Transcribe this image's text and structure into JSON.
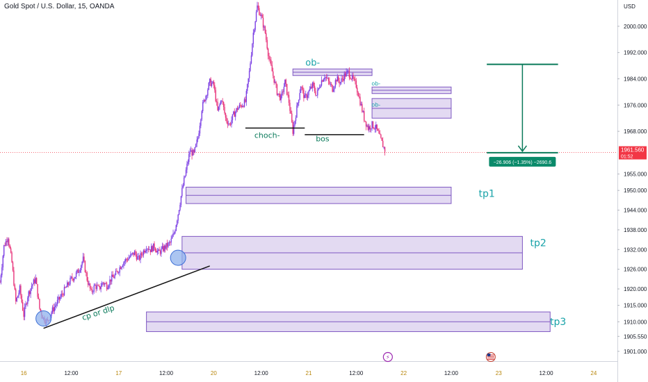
{
  "symbol_title": "Gold Spot / U.S. Dollar, 15, OANDA",
  "colors": {
    "up": "#7b3fe4",
    "down": "#e8337a",
    "zone_fill": "#d9cdee",
    "zone_line": "#7e57c2",
    "teal": "#17a2a8",
    "green": "#0a7a5a",
    "price_line": "#f23645",
    "circle": "#8fb1ec"
  },
  "chart_data": {
    "type": "candlestick",
    "y_axis": {
      "label": "USD",
      "ylim": [
        1898,
        2008
      ],
      "ticks": [
        "2000.000",
        "1992.000",
        "1984.000",
        "1976.000",
        "1968.000",
        "1955.000",
        "1950.000",
        "1944.000",
        "1938.000",
        "1932.000",
        "1926.000",
        "1920.000",
        "1915.000",
        "1910.000",
        "1905.550",
        "1901.000"
      ],
      "tick_values": [
        2000.0,
        1992.0,
        1984.0,
        1976.0,
        1968.0,
        1955.0,
        1950.0,
        1944.0,
        1938.0,
        1932.0,
        1926.0,
        1920.0,
        1915.0,
        1910.0,
        1905.55,
        1901.0
      ]
    },
    "x_axis": {
      "labels": [
        "16",
        "12:00",
        "17",
        "12:00",
        "20",
        "12:00",
        "21",
        "12:00",
        "22",
        "12:00",
        "23",
        "12:00",
        "24"
      ],
      "day_labels": [
        "16",
        "17",
        "20",
        "21",
        "22",
        "23",
        "24"
      ],
      "positions": [
        0,
        12,
        24,
        36,
        48,
        60,
        72,
        84,
        96,
        108,
        120,
        132,
        144
      ]
    },
    "x_range": [
      -6,
      150
    ],
    "price_path": [
      [
        -6,
        1922
      ],
      [
        -5,
        1933
      ],
      [
        -4,
        1936
      ],
      [
        -3,
        1928
      ],
      [
        -2,
        1916
      ],
      [
        -1,
        1920
      ],
      [
        0,
        1912
      ],
      [
        1,
        1918
      ],
      [
        2,
        1921
      ],
      [
        3,
        1923
      ],
      [
        4,
        1914
      ],
      [
        5,
        1911
      ],
      [
        6,
        1910
      ],
      [
        7,
        1913
      ],
      [
        8,
        1915
      ],
      [
        9,
        1917
      ],
      [
        10,
        1919
      ],
      [
        11,
        1921
      ],
      [
        12,
        1923
      ],
      [
        13,
        1924
      ],
      [
        14,
        1926
      ],
      [
        15,
        1929
      ],
      [
        16,
        1923
      ],
      [
        17,
        1919
      ],
      [
        18,
        1921
      ],
      [
        19,
        1920
      ],
      [
        20,
        1922
      ],
      [
        21,
        1921
      ],
      [
        22,
        1923
      ],
      [
        23,
        1924
      ],
      [
        24,
        1926
      ],
      [
        25,
        1928
      ],
      [
        26,
        1929
      ],
      [
        27,
        1930
      ],
      [
        28,
        1931
      ],
      [
        29,
        1929
      ],
      [
        30,
        1931
      ],
      [
        31,
        1933
      ],
      [
        32,
        1932
      ],
      [
        33,
        1933
      ],
      [
        34,
        1931
      ],
      [
        35,
        1932
      ],
      [
        36,
        1933
      ],
      [
        37,
        1934
      ],
      [
        38,
        1937
      ],
      [
        39,
        1943
      ],
      [
        40,
        1950
      ],
      [
        41,
        1956
      ],
      [
        42,
        1962
      ],
      [
        43,
        1961
      ],
      [
        44,
        1966
      ],
      [
        45,
        1975
      ],
      [
        46,
        1979
      ],
      [
        47,
        1983
      ],
      [
        48,
        1982
      ],
      [
        49,
        1974
      ],
      [
        50,
        1978
      ],
      [
        51,
        1972
      ],
      [
        52,
        1970
      ],
      [
        53,
        1973
      ],
      [
        54,
        1975
      ],
      [
        55,
        1976
      ],
      [
        56,
        1977
      ],
      [
        57,
        1986
      ],
      [
        58,
        1998
      ],
      [
        59,
        2006
      ],
      [
        60,
        2003
      ],
      [
        61,
        1998
      ],
      [
        62,
        1990
      ],
      [
        63,
        1985
      ],
      [
        64,
        1980
      ],
      [
        65,
        1978
      ],
      [
        66,
        1983
      ],
      [
        67,
        1977
      ],
      [
        68,
        1968
      ],
      [
        69,
        1975
      ],
      [
        70,
        1982
      ],
      [
        71,
        1978
      ],
      [
        72,
        1980
      ],
      [
        73,
        1982
      ],
      [
        74,
        1979
      ],
      [
        75,
        1983
      ],
      [
        76,
        1985
      ],
      [
        77,
        1983
      ],
      [
        78,
        1981
      ],
      [
        79,
        1984
      ],
      [
        80,
        1983
      ],
      [
        81,
        1985
      ],
      [
        82,
        1986
      ],
      [
        83,
        1984
      ],
      [
        84,
        1982
      ],
      [
        85,
        1977
      ],
      [
        86,
        1972
      ],
      [
        87,
        1969
      ],
      [
        88,
        1970
      ],
      [
        89,
        1969
      ],
      [
        90,
        1966
      ],
      [
        91,
        1963
      ],
      [
        91.5,
        1961.56
      ]
    ],
    "annotations": [
      {
        "text": "ob-",
        "x": 73,
        "y": 1988,
        "color": "teal",
        "size": 13
      },
      {
        "text": "ob-",
        "x": 89,
        "y": 1982,
        "color": "teal",
        "size": 8
      },
      {
        "text": "ob-",
        "x": 89,
        "y": 1975.5,
        "color": "teal",
        "size": 8
      },
      {
        "text": "choch-",
        "x": 61.5,
        "y": 1966,
        "color": "green",
        "size": 11
      },
      {
        "text": "bos",
        "x": 75.5,
        "y": 1965,
        "color": "green",
        "size": 11
      },
      {
        "text": "tp1",
        "x": 117,
        "y": 1948,
        "color": "teal",
        "size": 14
      },
      {
        "text": "tp2",
        "x": 130,
        "y": 1933,
        "color": "teal",
        "size": 14
      },
      {
        "text": "tp3",
        "x": 135,
        "y": 1909,
        "color": "teal",
        "size": 14
      },
      {
        "text": "cp  or dlp",
        "x": 19,
        "y": 1912,
        "color": "green",
        "size": 11,
        "rotate": -18
      }
    ],
    "zones": [
      {
        "name": "ob-top",
        "x1": 68,
        "x2": 88,
        "y1": 1987,
        "y2": 1985
      },
      {
        "name": "ob-right-upper",
        "x1": 88,
        "x2": 108,
        "y1": 1981.5,
        "y2": 1979.5
      },
      {
        "name": "ob-right-lower",
        "x1": 88,
        "x2": 108,
        "y1": 1978,
        "y2": 1972
      },
      {
        "name": "tp1-zone",
        "x1": 41,
        "x2": 108,
        "y1": 1951,
        "y2": 1946
      },
      {
        "name": "tp2-zone",
        "x1": 40,
        "x2": 126,
        "y1": 1936,
        "y2": 1926
      },
      {
        "name": "tp3-zone",
        "x1": 31,
        "x2": 133,
        "y1": 1913,
        "y2": 1907
      }
    ],
    "lines": [
      {
        "name": "choch-line",
        "x1": 56,
        "x2": 71,
        "y1": 1969,
        "y2": 1969,
        "color": "black"
      },
      {
        "name": "bos-line",
        "x1": 71,
        "x2": 86,
        "y1": 1967,
        "y2": 1967,
        "color": "black"
      },
      {
        "name": "trend-line",
        "x1": 5,
        "x2": 47,
        "y1": 1908,
        "y2": 1927,
        "color": "black"
      }
    ],
    "circles": [
      {
        "name": "low-circle-1",
        "x": 5,
        "y": 1911
      },
      {
        "name": "low-circle-2",
        "x": 39,
        "y": 1929.5
      }
    ],
    "measure": {
      "x": 126,
      "top": 1988.4,
      "bottom": 1961.5,
      "x1": 117,
      "x2": 135,
      "label": "−26.906 (−1.35%) −2690.6"
    },
    "last_price": {
      "value": "1961.560",
      "countdown": "01:52",
      "y": 1961.56
    },
    "event_markers": [
      {
        "name": "lightning-event",
        "x": 92,
        "symbol": "⚡"
      },
      {
        "name": "us-flag-event",
        "x": 118,
        "symbol": "US"
      }
    ]
  }
}
